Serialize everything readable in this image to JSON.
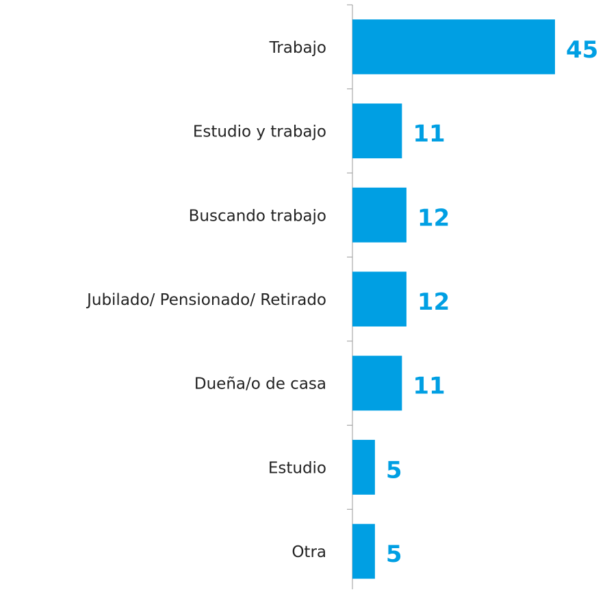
{
  "chart_data": {
    "type": "bar",
    "orientation": "horizontal",
    "categories": [
      "Trabajo",
      "Estudio y trabajo",
      "Buscando trabajo",
      "Jubilado/ Pensionado/ Retirado",
      "Dueña/o de casa",
      "Estudio",
      "Otra"
    ],
    "values": [
      45,
      11,
      12,
      12,
      11,
      5,
      5
    ],
    "color": "#009fe3"
  }
}
